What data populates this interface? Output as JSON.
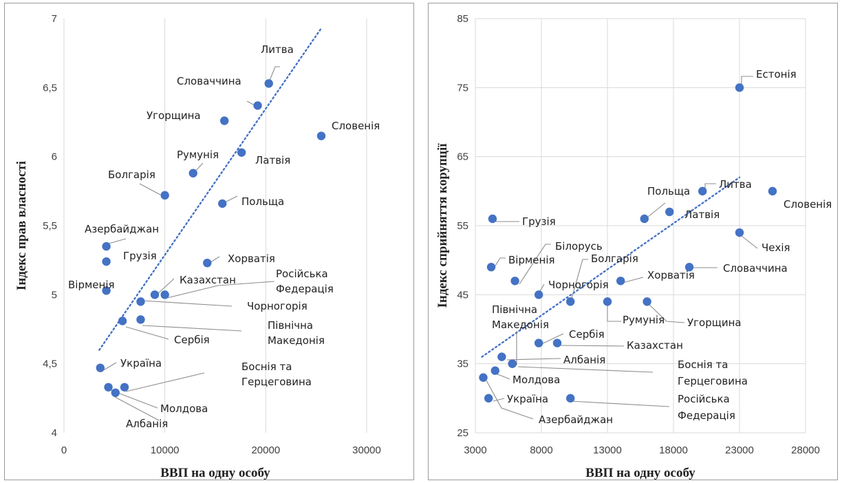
{
  "chart_data": [
    {
      "type": "scatter",
      "xlabel": "ВВП на одну особу",
      "ylabel": "Індекс прав власності",
      "xlim": [
        0,
        30000
      ],
      "ylim": [
        4,
        7
      ],
      "xticks": [
        "0",
        "10000",
        "20000",
        "30000"
      ],
      "yticks": [
        "4",
        "4,5",
        "5",
        "5,5",
        "6",
        "6,5",
        "7"
      ],
      "grid": "vertical",
      "trendline": [
        [
          3500,
          4.6
        ],
        [
          25500,
          6.93
        ]
      ],
      "points": [
        {
          "label": "Литва",
          "x": 20300,
          "y": 6.53
        },
        {
          "label": "Словаччина",
          "x": 19200,
          "y": 6.37
        },
        {
          "label": "Угорщина",
          "x": 15900,
          "y": 6.26
        },
        {
          "label": "Словенія",
          "x": 25500,
          "y": 6.15
        },
        {
          "label": "Латвія",
          "x": 17600,
          "y": 6.03
        },
        {
          "label": "Румунія",
          "x": 12800,
          "y": 5.88
        },
        {
          "label": "Болгарія",
          "x": 10000,
          "y": 5.72
        },
        {
          "label": "Польща",
          "x": 15700,
          "y": 5.66
        },
        {
          "label": "Азербайджан",
          "x": 4200,
          "y": 5.35
        },
        {
          "label": "Грузія",
          "x": 4200,
          "y": 5.24
        },
        {
          "label": "Хорватія",
          "x": 14200,
          "y": 5.23
        },
        {
          "label": "Вірменія",
          "x": 4200,
          "y": 5.03
        },
        {
          "label": "Казахстан",
          "x": 9000,
          "y": 5.0
        },
        {
          "label": "Російська Федерація",
          "x": 10000,
          "y": 5.0
        },
        {
          "label": "Чорногорія",
          "x": 7600,
          "y": 4.95
        },
        {
          "label": "Північна Македонія",
          "x": 7600,
          "y": 4.82
        },
        {
          "label": "Сербія",
          "x": 5800,
          "y": 4.81
        },
        {
          "label": "Україна",
          "x": 3600,
          "y": 4.47
        },
        {
          "label": "Боснія та Герцеговина",
          "x": 6000,
          "y": 4.33
        },
        {
          "label": "Молдова",
          "x": 4400,
          "y": 4.33
        },
        {
          "label": "Албанія",
          "x": 5100,
          "y": 4.29
        }
      ]
    },
    {
      "type": "scatter",
      "xlabel": "ВВП на одну особу",
      "ylabel": "Індекс сприйняття корупції",
      "xlim": [
        3000,
        28000
      ],
      "ylim": [
        25,
        85
      ],
      "xticks": [
        "3000",
        "8000",
        "13000",
        "18000",
        "23000",
        "28000"
      ],
      "yticks": [
        "25",
        "35",
        "45",
        "55",
        "65",
        "75",
        "85"
      ],
      "grid": "both",
      "trendline": [
        [
          3500,
          36
        ],
        [
          23000,
          62
        ]
      ],
      "points": [
        {
          "label": "Естонія",
          "x": 23000,
          "y": 75
        },
        {
          "label": "Литва",
          "x": 20200,
          "y": 60
        },
        {
          "label": "Словенія",
          "x": 25500,
          "y": 60
        },
        {
          "label": "Польща",
          "x": 15800,
          "y": 56
        },
        {
          "label": "Латвія",
          "x": 17700,
          "y": 57
        },
        {
          "label": "Грузія",
          "x": 4300,
          "y": 56
        },
        {
          "label": "Чехія",
          "x": 23000,
          "y": 54
        },
        {
          "label": "Вірменія",
          "x": 4200,
          "y": 49
        },
        {
          "label": "Білорусь",
          "x": 6000,
          "y": 47
        },
        {
          "label": "Словаччина",
          "x": 19200,
          "y": 49
        },
        {
          "label": "Болгарія",
          "x": 10200,
          "y": 44
        },
        {
          "label": "Хорватія",
          "x": 14000,
          "y": 47
        },
        {
          "label": "Чорногорія",
          "x": 7800,
          "y": 45
        },
        {
          "label": "Румунія",
          "x": 13000,
          "y": 44
        },
        {
          "label": "Угорщина",
          "x": 16000,
          "y": 44
        },
        {
          "label": "Сербія",
          "x": 7800,
          "y": 38
        },
        {
          "label": "Казахстан",
          "x": 9200,
          "y": 38
        },
        {
          "label": "Північна Македонія",
          "x": 5800,
          "y": 35
        },
        {
          "label": "Албанія",
          "x": 5000,
          "y": 36
        },
        {
          "label": "Боснія та Герцеговина",
          "x": 5800,
          "y": 35
        },
        {
          "label": "Молдова",
          "x": 4500,
          "y": 34
        },
        {
          "label": "Україна",
          "x": 4000,
          "y": 30
        },
        {
          "label": "Азербайджан",
          "x": 3600,
          "y": 33
        },
        {
          "label": "Російська Федерація",
          "x": 10200,
          "y": 30
        }
      ]
    }
  ]
}
